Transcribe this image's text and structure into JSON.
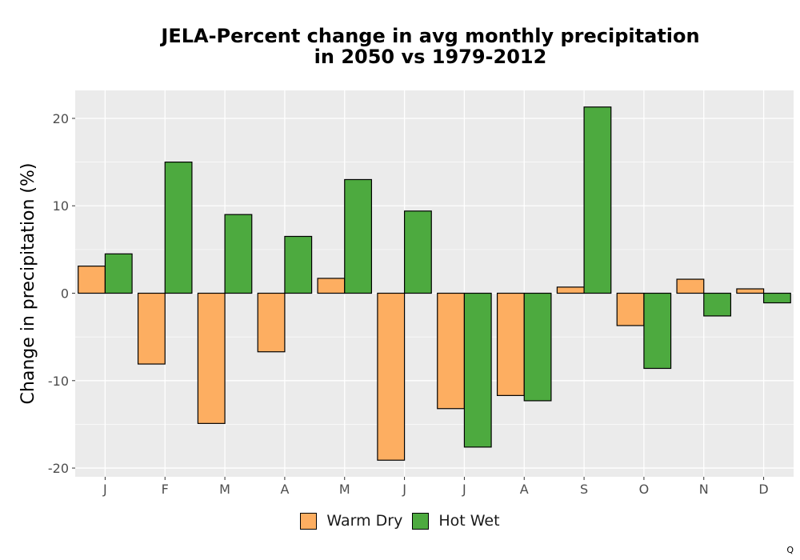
{
  "chart_data": {
    "type": "bar",
    "title_lines": [
      "JELA-Percent change in avg monthly precipitation",
      "in 2050 vs 1979-2012"
    ],
    "xlabel": "",
    "ylabel": "Change in precipitation (%)",
    "categories": [
      "J",
      "F",
      "M",
      "A",
      "M",
      "J",
      "J",
      "A",
      "S",
      "O",
      "N",
      "D"
    ],
    "series": [
      {
        "name": "Warm Dry",
        "color": "#fdae61",
        "values": [
          3.1,
          -8.1,
          -14.9,
          -6.7,
          1.7,
          -19.1,
          -13.2,
          -11.7,
          0.7,
          -3.7,
          1.6,
          0.5
        ]
      },
      {
        "name": "Hot Wet",
        "color": "#4daa3f",
        "values": [
          4.5,
          15.0,
          9.0,
          6.5,
          13.0,
          9.4,
          -17.6,
          -12.3,
          21.3,
          -8.6,
          -2.6,
          -1.1
        ]
      }
    ],
    "ylim": [
      -21,
      23.2
    ],
    "yticks": [
      -20,
      -10,
      0,
      10,
      20
    ],
    "grid": true,
    "panel_background": "#ebebeb",
    "legend_position": "bottom"
  },
  "footnote": "Q"
}
